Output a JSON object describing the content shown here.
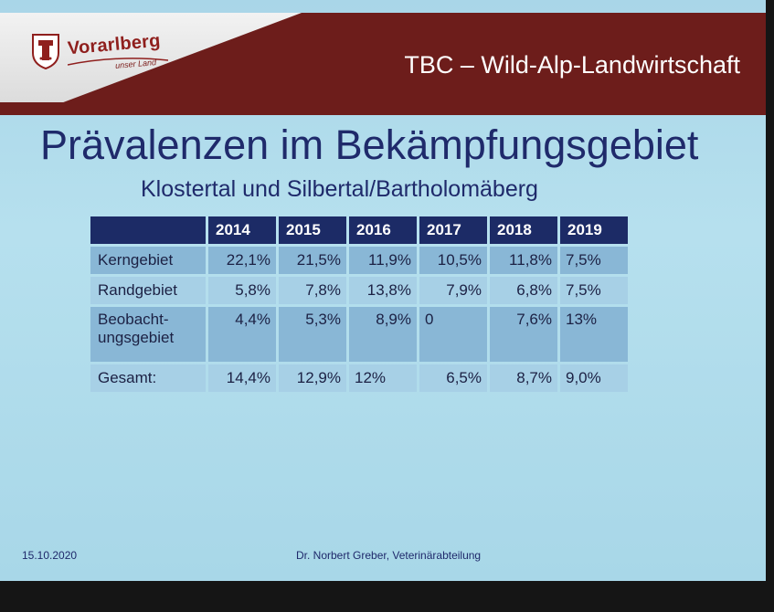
{
  "logo": {
    "name": "Vorarlberg",
    "tagline": "unser Land"
  },
  "header": {
    "title": "TBC – Wild-Alp-Landwirtschaft"
  },
  "main": {
    "heading": "Prävalenzen im Bekämpfungsgebiet",
    "subheading": "Klostertal und Silbertal/Bartholomäberg"
  },
  "table": {
    "columns": [
      "",
      "2014",
      "2015",
      "2016",
      "2017",
      "2018",
      "2019"
    ],
    "rows": [
      {
        "label": "Kerngebiet",
        "values": [
          "22,1%",
          "21,5%",
          "11,9%",
          "10,5%",
          "11,8%",
          "7,5%"
        ]
      },
      {
        "label": "Randgebiet",
        "values": [
          "5,8%",
          "7,8%",
          "13,8%",
          "7,9%",
          "6,8%",
          "7,5%"
        ]
      },
      {
        "label": "Beobacht-ungsgebiet",
        "label_line1": "Beobacht-",
        "label_line2": "ungsgebiet",
        "values": [
          "4,4%",
          "5,3%",
          "8,9%",
          "0",
          "7,6%",
          "13%"
        ]
      },
      {
        "label": "Gesamt:",
        "values": [
          "14,4%",
          "12,9%",
          "12%",
          "6,5%",
          "8,7%",
          "9,0%"
        ]
      }
    ]
  },
  "footer": {
    "date": "15.10.2020",
    "author": "Dr. Norbert Greber, Veterinärabteilung"
  },
  "colors": {
    "header_band": "#6d1d1b",
    "slide_background": "#b6e0ee",
    "heading_text": "#1f2a6b",
    "table_header": "#1c2b66",
    "row_dark": "#89b7d6",
    "row_light": "#a7d0e6"
  }
}
